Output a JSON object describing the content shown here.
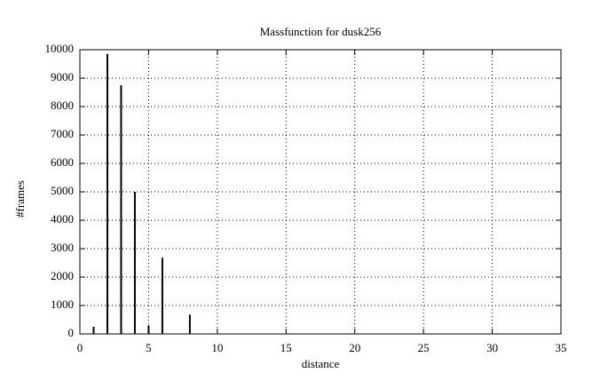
{
  "chart_data": {
    "type": "impulse",
    "title": "Massfunction for dusk256",
    "x_label": "distance",
    "y_label": "#frames",
    "x": [
      1,
      2,
      3,
      4,
      5,
      6,
      8
    ],
    "values": [
      250,
      9850,
      8750,
      5000,
      300,
      2680,
      680
    ],
    "color": "#000000",
    "xlim": [
      0,
      35
    ],
    "xticks": [
      0,
      5,
      10,
      15,
      20,
      25,
      30,
      35
    ],
    "ylim": [
      0,
      10000
    ],
    "yticks": [
      0,
      1000,
      2000,
      3000,
      4000,
      5000,
      6000,
      7000,
      8000,
      9000,
      10000
    ],
    "grid": true
  }
}
